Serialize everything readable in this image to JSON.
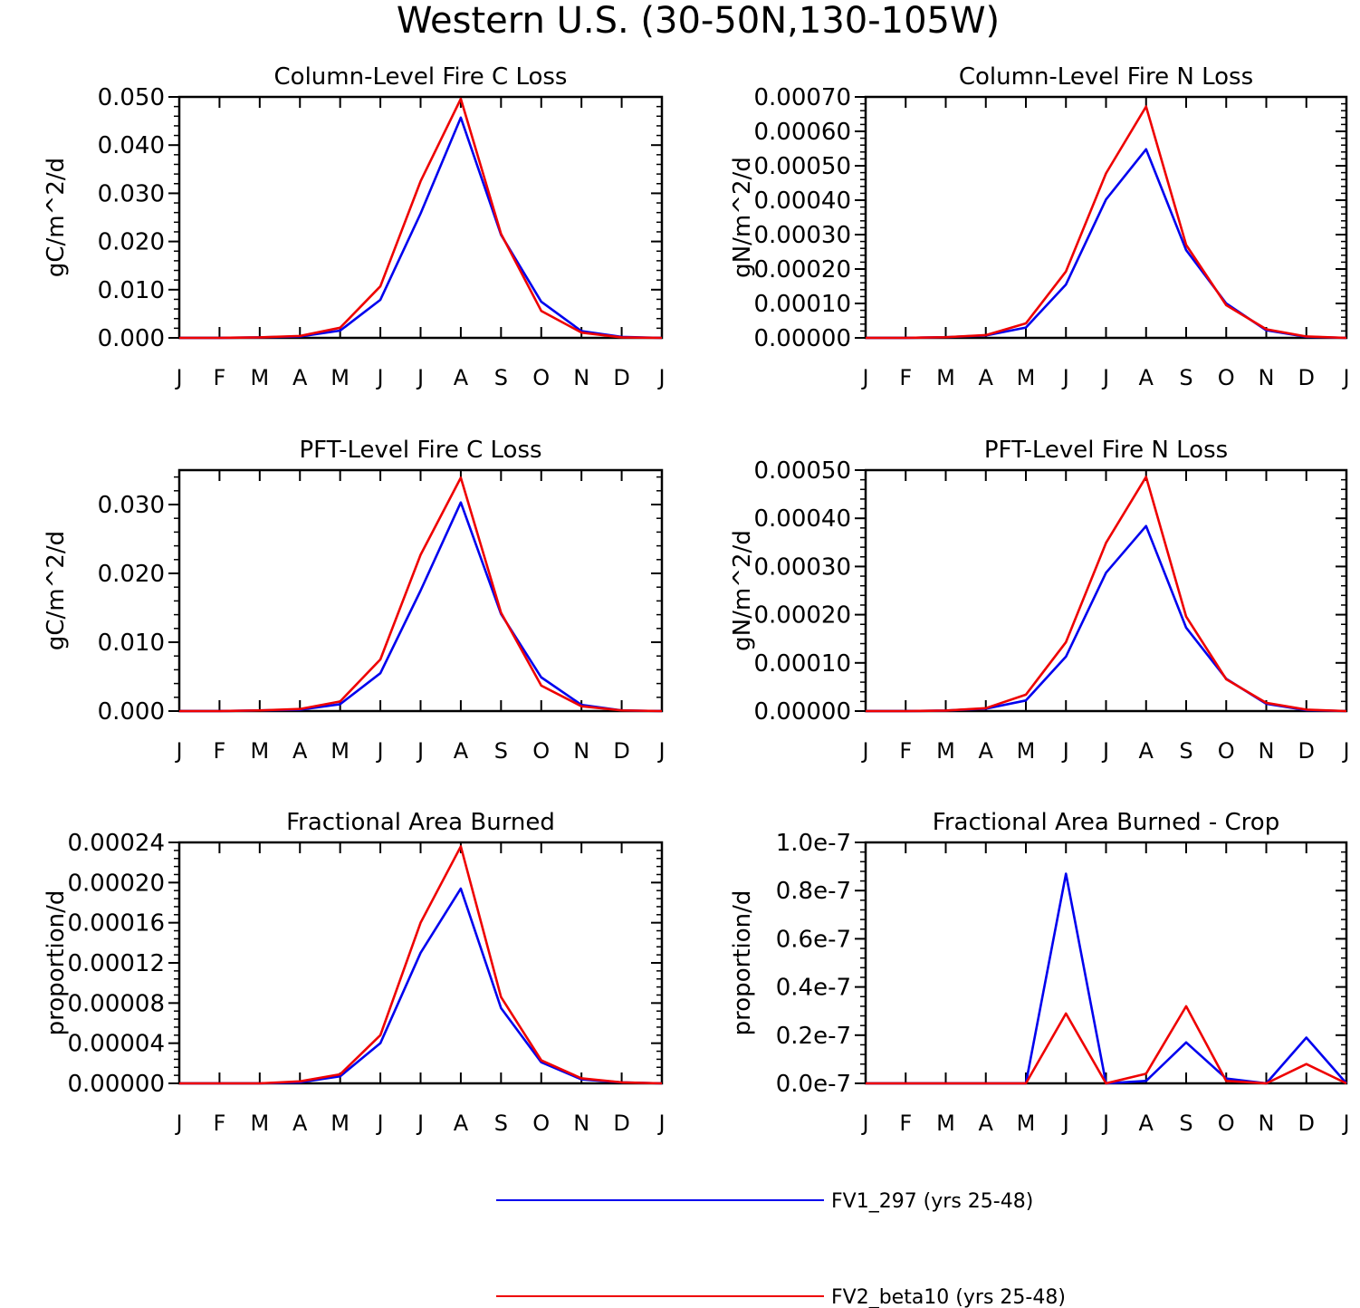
{
  "figure_title": "Western U.S. (30-50N,130-105W)",
  "months": [
    "J",
    "F",
    "M",
    "A",
    "M",
    "J",
    "J",
    "A",
    "S",
    "O",
    "N",
    "D",
    "J"
  ],
  "series_colors": {
    "FV1_297": "#0000ee",
    "FV2_beta10": "#ee0000"
  },
  "legend": [
    {
      "name": "FV1_297 (yrs 25-48)",
      "color": "#0000ee"
    },
    {
      "name": "FV2_beta10 (yrs 25-48)",
      "color": "#ee0000"
    }
  ],
  "chart_data": [
    {
      "type": "line",
      "title": "Column-Level Fire C Loss",
      "ylabel": "gC/m^2/d",
      "ylim": [
        0,
        0.05
      ],
      "yticks": [
        0,
        0.01,
        0.02,
        0.03,
        0.04,
        0.05
      ],
      "yticklabels": [
        "0.000",
        "0.010",
        "0.020",
        "0.030",
        "0.040",
        "0.050"
      ],
      "categories": [
        "J",
        "F",
        "M",
        "A",
        "M",
        "J",
        "J",
        "A",
        "S",
        "O",
        "N",
        "D",
        "J"
      ],
      "series": [
        {
          "name": "FV1_297 (yrs 25-48)",
          "color": "#0000ee",
          "values": [
            0,
            0,
            0.0001,
            0.0003,
            0.0015,
            0.0079,
            0.0258,
            0.0457,
            0.0214,
            0.0075,
            0.0014,
            0.0002,
            0
          ]
        },
        {
          "name": "FV2_beta10 (yrs 25-48)",
          "color": "#ee0000",
          "values": [
            0,
            0,
            0.0001,
            0.0004,
            0.0021,
            0.0107,
            0.0325,
            0.0496,
            0.0216,
            0.0056,
            0.0011,
            0.0001,
            0
          ]
        }
      ]
    },
    {
      "type": "line",
      "title": "Column-Level Fire N Loss",
      "ylabel": "gN/m^2/d",
      "ylim": [
        0,
        0.0007
      ],
      "yticks": [
        0,
        0.0001,
        0.0002,
        0.0003,
        0.0004,
        0.0005,
        0.0006,
        0.0007
      ],
      "yticklabels": [
        "0.00000",
        "0.00010",
        "0.00020",
        "0.00030",
        "0.00040",
        "0.00050",
        "0.00060",
        "0.00070"
      ],
      "categories": [
        "J",
        "F",
        "M",
        "A",
        "M",
        "J",
        "J",
        "A",
        "S",
        "O",
        "N",
        "D",
        "J"
      ],
      "series": [
        {
          "name": "FV1_297 (yrs 25-48)",
          "color": "#0000ee",
          "values": [
            0,
            0,
            2e-06,
            7e-06,
            3e-05,
            0.000155,
            0.000402,
            0.000548,
            0.000255,
            0.0001,
            2.2e-05,
            3e-06,
            0
          ]
        },
        {
          "name": "FV2_beta10 (yrs 25-48)",
          "color": "#ee0000",
          "values": [
            0,
            0,
            2e-06,
            8e-06,
            4.2e-05,
            0.000193,
            0.000478,
            0.000672,
            0.00027,
            9.5e-05,
            2.5e-05,
            4e-06,
            0
          ]
        }
      ]
    },
    {
      "type": "line",
      "title": "PFT-Level Fire C Loss",
      "ylabel": "gC/m^2/d",
      "ylim": [
        0,
        0.035
      ],
      "yticks": [
        0,
        0.01,
        0.02,
        0.03
      ],
      "yticklabels": [
        "0.000",
        "0.010",
        "0.020",
        "0.030"
      ],
      "categories": [
        "J",
        "F",
        "M",
        "A",
        "M",
        "J",
        "J",
        "A",
        "S",
        "O",
        "N",
        "D",
        "J"
      ],
      "series": [
        {
          "name": "FV1_297 (yrs 25-48)",
          "color": "#0000ee",
          "values": [
            0,
            0,
            0.0001,
            0.0002,
            0.001,
            0.0055,
            0.0175,
            0.0303,
            0.0141,
            0.0049,
            0.0009,
            0.0001,
            0
          ]
        },
        {
          "name": "FV2_beta10 (yrs 25-48)",
          "color": "#ee0000",
          "values": [
            0,
            0,
            0.0001,
            0.0003,
            0.0014,
            0.0075,
            0.0227,
            0.0339,
            0.0143,
            0.0037,
            0.0007,
            0.0001,
            0
          ]
        }
      ]
    },
    {
      "type": "line",
      "title": "PFT-Level Fire N Loss",
      "ylabel": "gN/m^2/d",
      "ylim": [
        0,
        0.0005
      ],
      "yticks": [
        0,
        0.0001,
        0.0002,
        0.0003,
        0.0004,
        0.0005
      ],
      "yticklabels": [
        "0.00000",
        "0.00010",
        "0.00020",
        "0.00030",
        "0.00040",
        "0.00050"
      ],
      "categories": [
        "J",
        "F",
        "M",
        "A",
        "M",
        "J",
        "J",
        "A",
        "S",
        "O",
        "N",
        "D",
        "J"
      ],
      "series": [
        {
          "name": "FV1_297 (yrs 25-48)",
          "color": "#0000ee",
          "values": [
            0,
            0,
            1e-06,
            5e-06,
            2.2e-05,
            0.000113,
            0.000287,
            0.000384,
            0.000173,
            6.7e-05,
            1.5e-05,
            2e-06,
            0
          ]
        },
        {
          "name": "FV2_beta10 (yrs 25-48)",
          "color": "#ee0000",
          "values": [
            0,
            0,
            1e-06,
            6e-06,
            3.4e-05,
            0.000143,
            0.000349,
            0.000486,
            0.000196,
            6.6e-05,
            1.7e-05,
            3e-06,
            0
          ]
        }
      ]
    },
    {
      "type": "line",
      "title": "Fractional Area Burned",
      "ylabel": "proportion/d",
      "ylim": [
        0,
        0.00024
      ],
      "yticks": [
        0,
        4e-05,
        8e-05,
        0.00012,
        0.00016,
        0.0002,
        0.00024
      ],
      "yticklabels": [
        "0.00000",
        "0.00004",
        "0.00008",
        "0.00012",
        "0.00016",
        "0.00020",
        "0.00024"
      ],
      "categories": [
        "J",
        "F",
        "M",
        "A",
        "M",
        "J",
        "J",
        "A",
        "S",
        "O",
        "N",
        "D",
        "J"
      ],
      "series": [
        {
          "name": "FV1_297 (yrs 25-48)",
          "color": "#0000ee",
          "values": [
            0,
            0,
            0,
            1e-06,
            7e-06,
            4e-05,
            0.00013,
            0.000194,
            7.5e-05,
            2.1e-05,
            4e-06,
            1e-06,
            0
          ]
        },
        {
          "name": "FV2_beta10 (yrs 25-48)",
          "color": "#ee0000",
          "values": [
            0,
            0,
            0,
            2e-06,
            9e-06,
            4.8e-05,
            0.00016,
            0.000236,
            8.6e-05,
            2.3e-05,
            5e-06,
            1e-06,
            0
          ]
        }
      ]
    },
    {
      "type": "line",
      "title": "Fractional Area Burned - Crop",
      "ylabel": "proportion/d",
      "ylim": [
        0,
        1e-07
      ],
      "yticks": [
        0,
        2e-08,
        4e-08,
        6e-08,
        8e-08,
        1e-07
      ],
      "yticklabels": [
        "0.0e-7",
        "0.2e-7",
        "0.4e-7",
        "0.6e-7",
        "0.8e-7",
        "1.0e-7"
      ],
      "categories": [
        "J",
        "F",
        "M",
        "A",
        "M",
        "J",
        "J",
        "A",
        "S",
        "O",
        "N",
        "D",
        "J"
      ],
      "series": [
        {
          "name": "FV1_297 (yrs 25-48)",
          "color": "#0000ee",
          "values": [
            0,
            0,
            0,
            0,
            0,
            8.7e-08,
            0,
            1e-09,
            1.7e-08,
            2e-09,
            0,
            1.9e-08,
            0
          ]
        },
        {
          "name": "FV2_beta10 (yrs 25-48)",
          "color": "#ee0000",
          "values": [
            0,
            0,
            0,
            0,
            0,
            2.9e-08,
            0,
            4e-09,
            3.2e-08,
            1e-09,
            0,
            8e-09,
            0
          ]
        }
      ]
    }
  ]
}
